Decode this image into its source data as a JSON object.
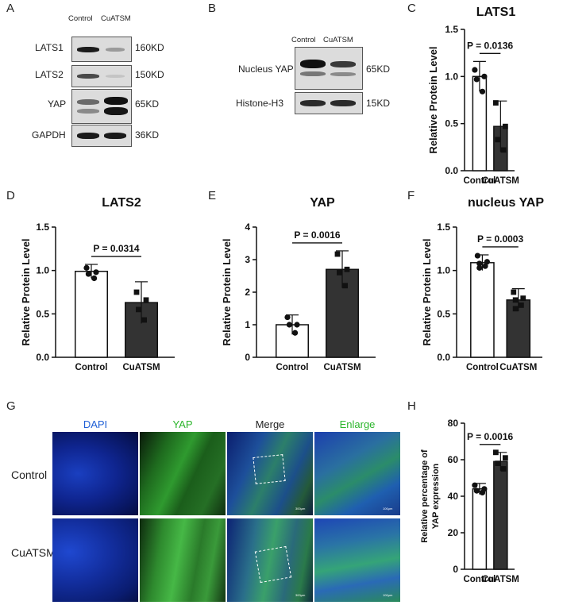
{
  "panels": {
    "A": "A",
    "B": "B",
    "C": "C",
    "D": "D",
    "E": "E",
    "F": "F",
    "G": "G",
    "H": "H"
  },
  "wb_a": {
    "groups": [
      "Control",
      "CuATSM"
    ],
    "rows": [
      {
        "name": "LATS1",
        "size": "160KD"
      },
      {
        "name": "LATS2",
        "size": "150KD"
      },
      {
        "name": "YAP",
        "size": "65KD"
      },
      {
        "name": "GAPDH",
        "size": "36KD"
      }
    ]
  },
  "wb_b": {
    "groups": [
      "Control",
      "CuATSM"
    ],
    "rows": [
      {
        "name": "Nucleus YAP",
        "size": "65KD"
      },
      {
        "name": "Histone-H3",
        "size": "15KD"
      }
    ]
  },
  "chart_data": [
    {
      "id": "C",
      "type": "bar",
      "title": "LATS1",
      "categories": [
        "Control",
        "CuATSM"
      ],
      "values": [
        1.0,
        0.47
      ],
      "errors": [
        0.16,
        0.27
      ],
      "points": [
        [
          1.07,
          1.0,
          0.97,
          0.84
        ],
        [
          0.72,
          0.47,
          0.33,
          0.22
        ]
      ],
      "ylabel": "Relative Protein Level",
      "ylim": [
        0,
        1.5
      ],
      "yticks": [
        "0.0",
        "0.5",
        "1.0",
        "1.5"
      ],
      "pvalue": "P = 0.0136",
      "colors": [
        "#ffffff",
        "#333333"
      ]
    },
    {
      "id": "D",
      "type": "bar",
      "title": "LATS2",
      "categories": [
        "Control",
        "CuATSM"
      ],
      "values": [
        0.99,
        0.63
      ],
      "errors": [
        0.08,
        0.24
      ],
      "points": [
        [
          1.03,
          0.98,
          0.96,
          0.91
        ],
        [
          0.75,
          0.66,
          0.55,
          0.43
        ]
      ],
      "ylabel": "Relative Protein Level",
      "ylim": [
        0,
        1.5
      ],
      "yticks": [
        "0.0",
        "0.5",
        "1.0",
        "1.5"
      ],
      "pvalue": "P = 0.0314",
      "colors": [
        "#ffffff",
        "#333333"
      ]
    },
    {
      "id": "E",
      "type": "bar",
      "title": "YAP",
      "categories": [
        "Control",
        "CuATSM"
      ],
      "values": [
        1.0,
        2.7
      ],
      "errors": [
        0.3,
        0.57
      ],
      "points": [
        [
          1.23,
          1.0,
          1.0,
          0.75
        ],
        [
          3.17,
          2.7,
          2.6,
          2.2
        ]
      ],
      "ylabel": "Relative Protein Level",
      "ylim": [
        0,
        4
      ],
      "yticks": [
        "0",
        "1",
        "2",
        "3",
        "4"
      ],
      "pvalue": "P = 0.0016",
      "colors": [
        "#ffffff",
        "#333333"
      ]
    },
    {
      "id": "F",
      "type": "bar",
      "title": "nucleus YAP",
      "categories": [
        "Control",
        "CuATSM"
      ],
      "values": [
        1.09,
        0.66
      ],
      "errors": [
        0.09,
        0.13
      ],
      "points": [
        [
          1.17,
          1.1,
          1.08,
          1.05,
          1.03
        ],
        [
          0.75,
          0.68,
          0.66,
          0.6,
          0.56
        ]
      ],
      "ylabel": "Relative Protein Level",
      "ylim": [
        0,
        1.5
      ],
      "yticks": [
        "0.0",
        "0.5",
        "1.0",
        "1.5"
      ],
      "pvalue": "P = 0.0003",
      "colors": [
        "#ffffff",
        "#333333"
      ]
    },
    {
      "id": "H",
      "type": "bar",
      "title": "",
      "categories": [
        "Control",
        "CuATSM"
      ],
      "values": [
        44,
        59
      ],
      "errors": [
        3,
        5
      ],
      "points": [
        [
          46,
          44,
          43,
          42
        ],
        [
          64,
          61,
          58,
          55
        ]
      ],
      "ylabel": "Relative percentage of YAP expression",
      "ylim": [
        0,
        80
      ],
      "yticks": [
        "0",
        "20",
        "40",
        "60",
        "80"
      ],
      "pvalue": "P = 0.0016",
      "colors": [
        "#ffffff",
        "#333333"
      ]
    }
  ],
  "microscopy": {
    "columns": [
      {
        "label": "DAPI",
        "color": "#1f5fd6"
      },
      {
        "label": "YAP",
        "color": "#2bb52b"
      },
      {
        "label": "Merge",
        "color": "#222222"
      },
      {
        "label": "Enlarge",
        "color": "#2bb52b"
      }
    ],
    "rows": [
      "Control",
      "CuATSM"
    ],
    "scale_merge": "300μm",
    "scale_enlarge": "100μm"
  }
}
